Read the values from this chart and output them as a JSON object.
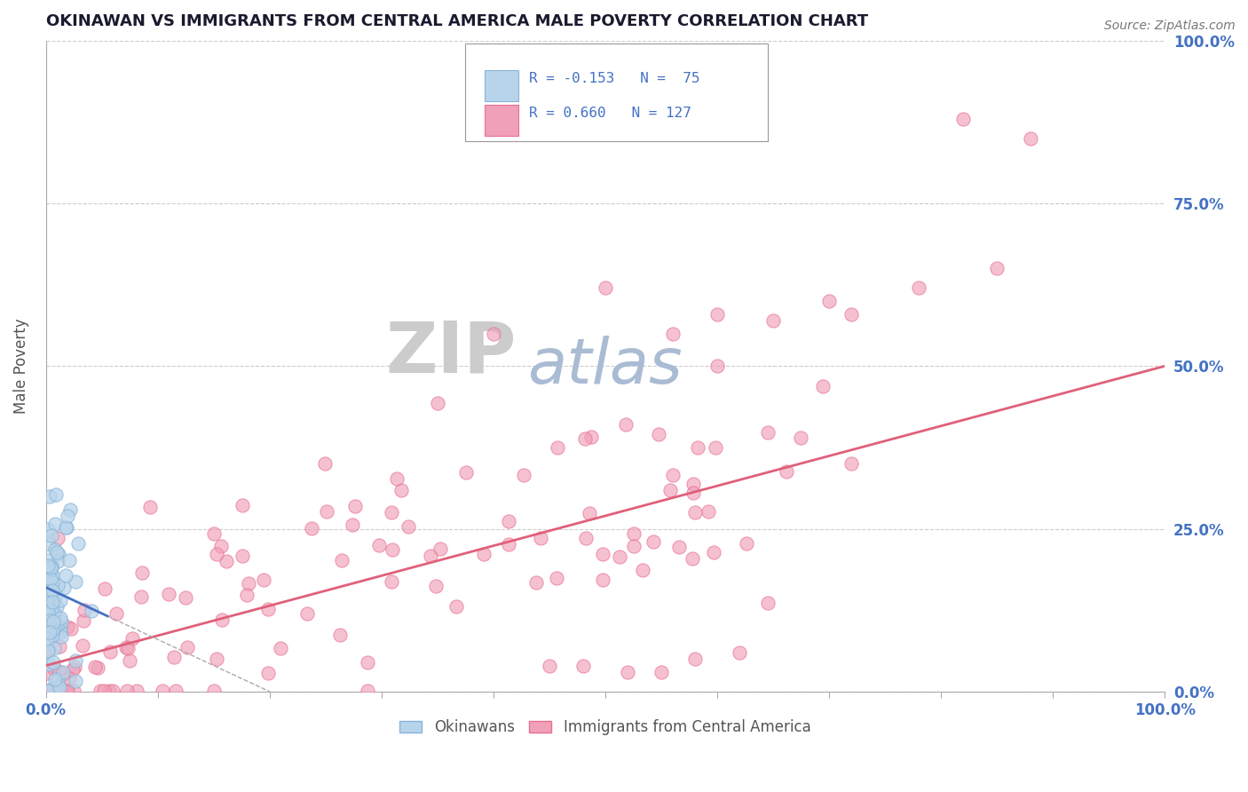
{
  "title": "OKINAWAN VS IMMIGRANTS FROM CENTRAL AMERICA MALE POVERTY CORRELATION CHART",
  "source_text": "Source: ZipAtlas.com",
  "ylabel": "Male Poverty",
  "watermark_ZIP": "ZIP",
  "watermark_atlas": "atlas",
  "xlim": [
    0.0,
    1.0
  ],
  "ylim": [
    0.0,
    1.0
  ],
  "xticks": [
    0.0,
    0.1,
    0.2,
    0.3,
    0.4,
    0.5,
    0.6,
    0.7,
    0.8,
    0.9,
    1.0
  ],
  "ytick_vals": [
    0.0,
    0.25,
    0.5,
    0.75,
    1.0
  ],
  "okinawan_color": "#88b4d8",
  "okinawan_face": "#b8d4ea",
  "central_color": "#e87090",
  "central_face": "#f0a0b8",
  "R_okinawan": -0.153,
  "N_okinawan": 75,
  "R_central": 0.66,
  "N_central": 127,
  "background_color": "#ffffff",
  "grid_color": "#cccccc",
  "title_color": "#1a1a2e",
  "axis_label_color": "#555555",
  "tick_label_color": "#4472c4",
  "source_color": "#777777",
  "watermark_ZIP_color": "#cccccc",
  "watermark_atlas_color": "#aabbd4",
  "figsize": [
    14.06,
    8.92
  ],
  "dpi": 100,
  "legend_R1": "R = -0.153",
  "legend_N1": "N =  75",
  "legend_R2": "R = 0.660",
  "legend_N2": "N = 127"
}
